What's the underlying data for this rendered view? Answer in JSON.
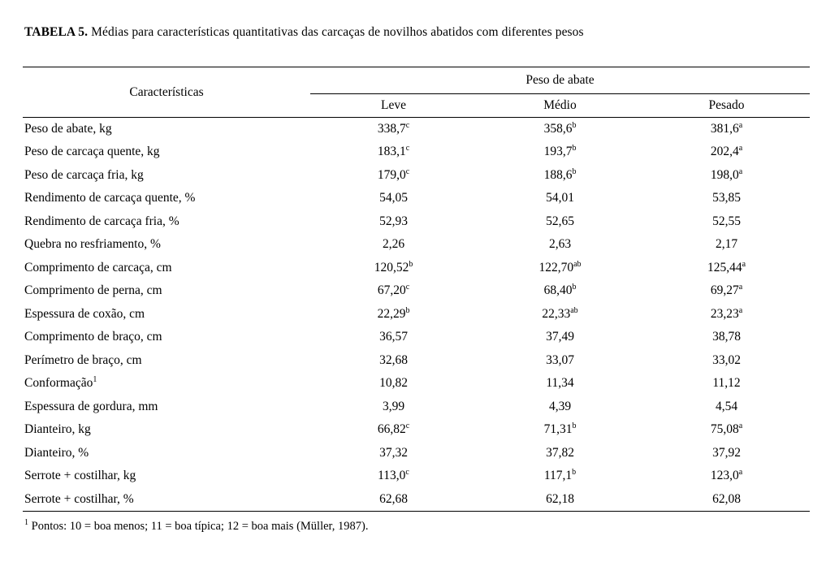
{
  "title": {
    "label": "TABELA 5.",
    "text": " Médias para características quantitativas das carcaças de novilhos abatidos com diferentes pesos"
  },
  "table": {
    "col_header_left": "Características",
    "group_header": "Peso de abate",
    "columns": [
      "Leve",
      "Médio",
      "Pesado"
    ],
    "rows": [
      {
        "label": "Peso de abate, kg",
        "label_sup": "",
        "cells": [
          {
            "v": "338,7",
            "sup": "c"
          },
          {
            "v": "358,6",
            "sup": "b"
          },
          {
            "v": "381,6",
            "sup": "a"
          }
        ]
      },
      {
        "label": "Peso de carcaça quente, kg",
        "label_sup": "",
        "cells": [
          {
            "v": "183,1",
            "sup": "c"
          },
          {
            "v": "193,7",
            "sup": "b"
          },
          {
            "v": "202,4",
            "sup": "a"
          }
        ]
      },
      {
        "label": "Peso de carcaça fria, kg",
        "label_sup": "",
        "cells": [
          {
            "v": "179,0",
            "sup": "c"
          },
          {
            "v": "188,6",
            "sup": "b"
          },
          {
            "v": "198,0",
            "sup": "a"
          }
        ]
      },
      {
        "label": "Rendimento de carcaça quente, %",
        "label_sup": "",
        "cells": [
          {
            "v": "54,05",
            "sup": ""
          },
          {
            "v": "54,01",
            "sup": ""
          },
          {
            "v": "53,85",
            "sup": ""
          }
        ]
      },
      {
        "label": "Rendimento de carcaça fria, %",
        "label_sup": "",
        "cells": [
          {
            "v": "52,93",
            "sup": ""
          },
          {
            "v": "52,65",
            "sup": ""
          },
          {
            "v": "52,55",
            "sup": ""
          }
        ]
      },
      {
        "label": "Quebra no resfriamento, %",
        "label_sup": "",
        "cells": [
          {
            "v": "2,26",
            "sup": ""
          },
          {
            "v": "2,63",
            "sup": ""
          },
          {
            "v": "2,17",
            "sup": ""
          }
        ]
      },
      {
        "label": "Comprimento de carcaça, cm",
        "label_sup": "",
        "cells": [
          {
            "v": "120,52",
            "sup": "b"
          },
          {
            "v": "122,70",
            "sup": "ab"
          },
          {
            "v": "125,44",
            "sup": "a"
          }
        ]
      },
      {
        "label": "Comprimento de perna, cm",
        "label_sup": "",
        "cells": [
          {
            "v": "67,20",
            "sup": "c"
          },
          {
            "v": "68,40",
            "sup": "b"
          },
          {
            "v": "69,27",
            "sup": "a"
          }
        ]
      },
      {
        "label": "Espessura de coxão, cm",
        "label_sup": "",
        "cells": [
          {
            "v": "22,29",
            "sup": "b"
          },
          {
            "v": "22,33",
            "sup": "ab"
          },
          {
            "v": "23,23",
            "sup": "a"
          }
        ]
      },
      {
        "label": "Comprimento de braço, cm",
        "label_sup": "",
        "cells": [
          {
            "v": "36,57",
            "sup": ""
          },
          {
            "v": "37,49",
            "sup": ""
          },
          {
            "v": "38,78",
            "sup": ""
          }
        ]
      },
      {
        "label": "Perímetro de braço, cm",
        "label_sup": "",
        "cells": [
          {
            "v": "32,68",
            "sup": ""
          },
          {
            "v": "33,07",
            "sup": ""
          },
          {
            "v": "33,02",
            "sup": ""
          }
        ]
      },
      {
        "label": "Conformação",
        "label_sup": "1",
        "cells": [
          {
            "v": "10,82",
            "sup": ""
          },
          {
            "v": "11,34",
            "sup": ""
          },
          {
            "v": "11,12",
            "sup": ""
          }
        ]
      },
      {
        "label": "Espessura de gordura, mm",
        "label_sup": "",
        "cells": [
          {
            "v": "3,99",
            "sup": ""
          },
          {
            "v": "4,39",
            "sup": ""
          },
          {
            "v": "4,54",
            "sup": ""
          }
        ]
      },
      {
        "label": "Dianteiro, kg",
        "label_sup": "",
        "cells": [
          {
            "v": "66,82",
            "sup": "c"
          },
          {
            "v": "71,31",
            "sup": "b"
          },
          {
            "v": "75,08",
            "sup": "a"
          }
        ]
      },
      {
        "label": "Dianteiro, %",
        "label_sup": "",
        "cells": [
          {
            "v": "37,32",
            "sup": ""
          },
          {
            "v": "37,82",
            "sup": ""
          },
          {
            "v": "37,92",
            "sup": ""
          }
        ]
      },
      {
        "label": "Serrote + costilhar, kg",
        "label_sup": "",
        "cells": [
          {
            "v": "113,0",
            "sup": "c"
          },
          {
            "v": "117,1",
            "sup": "b"
          },
          {
            "v": "123,0",
            "sup": "a"
          }
        ]
      },
      {
        "label": "Serrote + costilhar, %",
        "label_sup": "",
        "cells": [
          {
            "v": "62,68",
            "sup": ""
          },
          {
            "v": "62,18",
            "sup": ""
          },
          {
            "v": "62,08",
            "sup": ""
          }
        ]
      }
    ]
  },
  "footnote": {
    "sup": "1",
    "text": " Pontos: 10 = boa menos; 11 = boa típica; 12 = boa mais (Müller, 1987)."
  },
  "colors": {
    "text": "#000000",
    "background": "#ffffff",
    "rule": "#000000"
  }
}
